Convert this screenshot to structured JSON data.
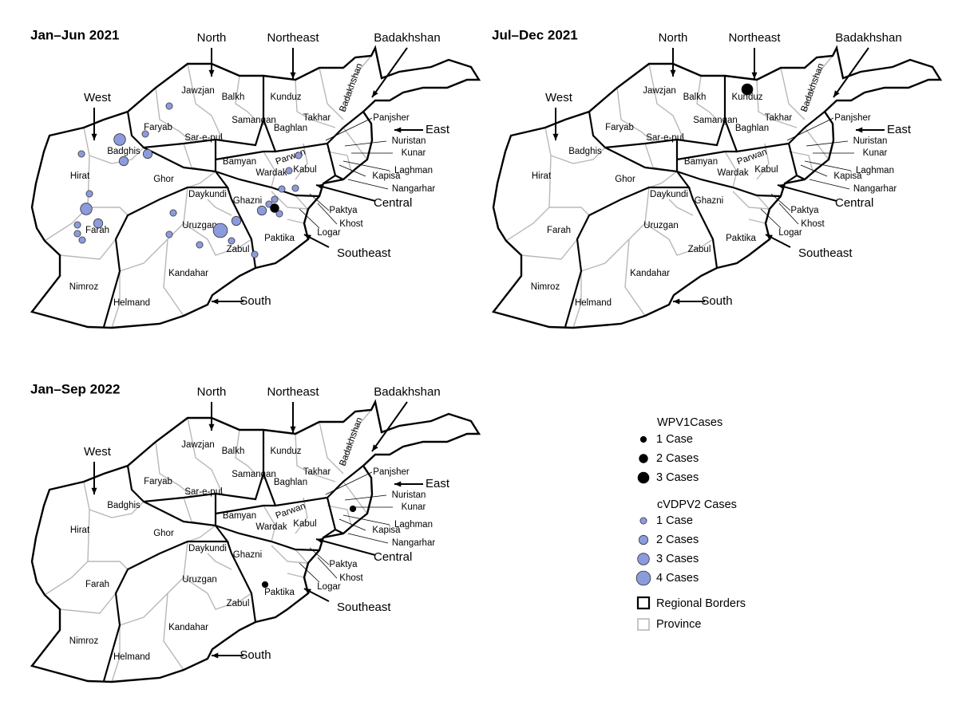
{
  "maps": [
    {
      "title": "Jan–Jun 2021",
      "wpv1_cases": [
        2
      ],
      "cvdpv2_cases": [
        1,
        1,
        3,
        2,
        2,
        1,
        1,
        3,
        1,
        2,
        1,
        1,
        1,
        1,
        1,
        4,
        2,
        1,
        1,
        2,
        1,
        1,
        1,
        1,
        1,
        1,
        1
      ]
    },
    {
      "title": "Jul–Dec 2021",
      "wpv1_cases": [
        3
      ],
      "cvdpv2_cases": []
    },
    {
      "title": "Jan–Sep 2022",
      "wpv1_cases": [
        1,
        1
      ],
      "cvdpv2_cases": []
    }
  ],
  "region_labels": [
    "North",
    "Northeast",
    "Badakhshan",
    "West",
    "East",
    "Central",
    "Southeast",
    "South"
  ],
  "province_labels": [
    "Jawzjan",
    "Balkh",
    "Kunduz",
    "Takhar",
    "Badakhshan",
    "Faryab",
    "Samangan",
    "Baghlan",
    "Panjsher",
    "Nuristan",
    "Kunar",
    "Laghman",
    "Kapisa",
    "Nangarhar",
    "Sar-e-pul",
    "Badghis",
    "Hirat",
    "Ghor",
    "Bamyan",
    "Parwan",
    "Wardak",
    "Kabul",
    "Daykundi",
    "Ghazni",
    "Paktya",
    "Khost",
    "Logar",
    "Paktika",
    "Uruzgan",
    "Zabul",
    "Farah",
    "Nimroz",
    "Helmand",
    "Kandahar"
  ],
  "wpv1_color": "#000000",
  "cvdpv2_color": "#8c9bdc",
  "legend": {
    "wpv1_title": "WPV1Cases",
    "wpv1": [
      {
        "label": "1 Case",
        "cases": 1
      },
      {
        "label": "2 Cases",
        "cases": 2
      },
      {
        "label": "3 Cases",
        "cases": 3
      }
    ],
    "cvdpv2_title": "cVDPV2 Cases",
    "cvdpv2": [
      {
        "label": "1 Case",
        "cases": 1
      },
      {
        "label": "2 Cases",
        "cases": 2
      },
      {
        "label": "3 Cases",
        "cases": 3
      },
      {
        "label": "4 Cases",
        "cases": 4
      }
    ],
    "regional_borders": "Regional Borders",
    "province": "Province"
  }
}
